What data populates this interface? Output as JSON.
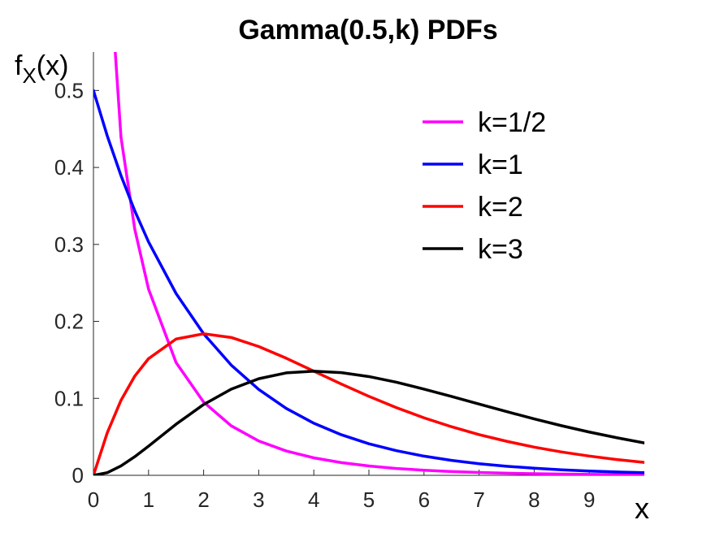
{
  "chart_data": {
    "type": "line",
    "title": "Gamma(0.5,k) PDFs",
    "xlabel": "x",
    "ylabel": {
      "base": "f",
      "subscript": "X",
      "suffix": "(x)"
    },
    "xlim": [
      0,
      10
    ],
    "ylim": [
      0,
      0.55
    ],
    "xticks": [
      "0",
      "1",
      "2",
      "3",
      "4",
      "5",
      "6",
      "7",
      "8",
      "9"
    ],
    "yticks": [
      "0",
      "0.1",
      "0.2",
      "0.3",
      "0.4",
      "0.5"
    ],
    "grid": false,
    "legend": "top-right",
    "x": [
      0,
      0.25,
      0.5,
      0.75,
      1,
      1.5,
      2,
      2.5,
      3,
      3.5,
      4,
      4.5,
      5,
      5.5,
      6,
      6.5,
      7,
      7.5,
      8,
      8.5,
      9,
      9.5,
      10
    ],
    "series": [
      {
        "name": "k=1/2",
        "color": "#ff00ff",
        "values": [
          null,
          0.7046,
          0.4393,
          0.3198,
          0.242,
          0.1465,
          0.0952,
          0.0643,
          0.0446,
          0.0316,
          0.0227,
          0.0165,
          0.0121,
          0.0089,
          0.0066,
          0.0049,
          0.0037,
          0.0028,
          0.0021,
          0.0016,
          0.0012,
          0.0009,
          0.0007
        ]
      },
      {
        "name": "k=1",
        "color": "#0000ff",
        "values": [
          0.5,
          0.4412,
          0.3894,
          0.3436,
          0.3033,
          0.2362,
          0.1839,
          0.1433,
          0.1116,
          0.0869,
          0.0677,
          0.0527,
          0.041,
          0.032,
          0.0249,
          0.0194,
          0.0151,
          0.0118,
          0.0092,
          0.0071,
          0.0056,
          0.0043,
          0.0034
        ]
      },
      {
        "name": "k=2",
        "color": "#ff0000",
        "values": [
          0,
          0.0551,
          0.0974,
          0.1289,
          0.1516,
          0.1771,
          0.1839,
          0.1791,
          0.1673,
          0.1521,
          0.1353,
          0.1186,
          0.1026,
          0.0879,
          0.0747,
          0.0631,
          0.0529,
          0.0442,
          0.0366,
          0.0303,
          0.025,
          0.0205,
          0.0168
        ]
      },
      {
        "name": "k=3",
        "color": "#000000",
        "values": [
          0,
          0.0034,
          0.0122,
          0.0242,
          0.0379,
          0.0664,
          0.092,
          0.1119,
          0.1255,
          0.1331,
          0.1353,
          0.1334,
          0.1283,
          0.1209,
          0.112,
          0.1025,
          0.0926,
          0.0828,
          0.0733,
          0.0644,
          0.0562,
          0.0488,
          0.0421
        ]
      }
    ]
  }
}
